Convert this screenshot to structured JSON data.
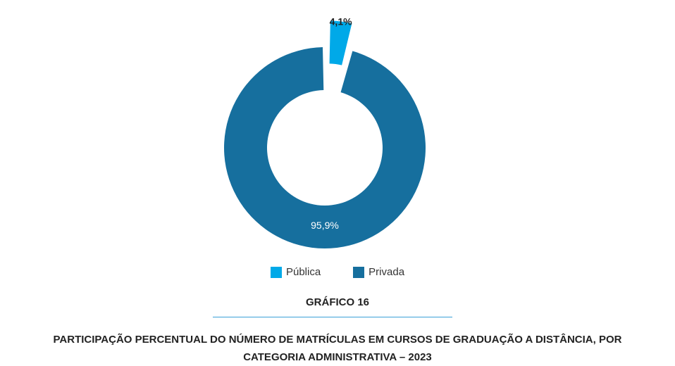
{
  "chart_data": {
    "type": "pie",
    "categories": [
      "Pública",
      "Privada"
    ],
    "values": [
      4.1,
      95.9
    ],
    "labels": [
      "4,1%",
      "95,9%"
    ],
    "colors": [
      "#00a9e8",
      "#166f9e"
    ],
    "legend_position": "bottom",
    "donut": true,
    "exploded": "Pública"
  },
  "figure": {
    "number": "GRÁFICO 16",
    "title": "PARTICIPAÇÃO PERCENTUAL DO NÚMERO DE MATRÍCULAS EM CURSOS DE GRADUAÇÃO A DISTÂNCIA, POR CATEGORIA ADMINISTRATIVA – 2023"
  }
}
